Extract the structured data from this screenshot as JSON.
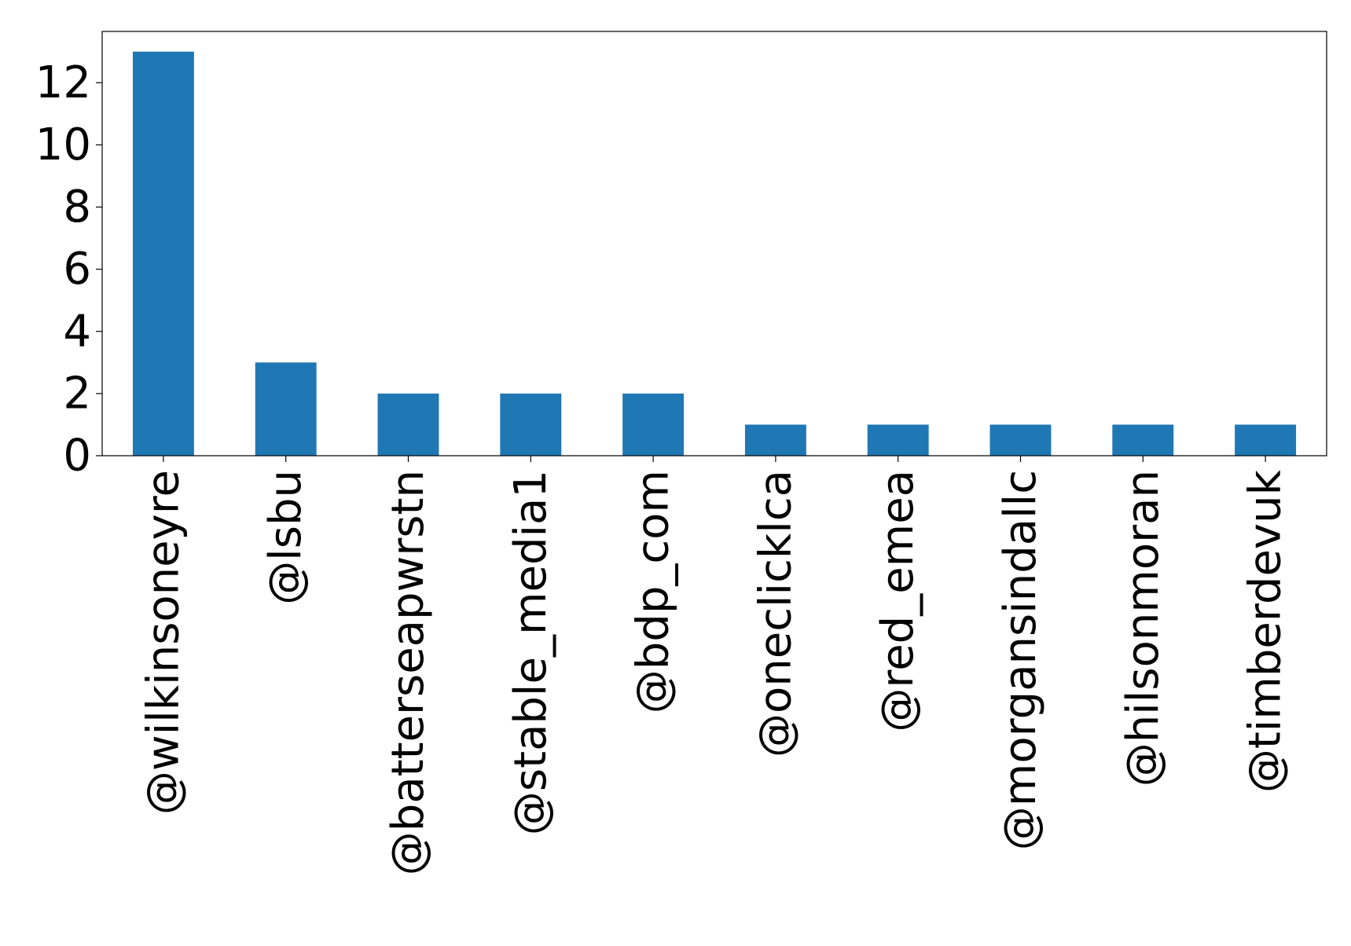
{
  "chart_data": {
    "type": "bar",
    "title": "",
    "xlabel": "",
    "ylabel": "",
    "categories": [
      "@wilkinsoneyre",
      "@lsbu",
      "@batterseapwrstn",
      "@stable_media1",
      "@bdp_com",
      "@oneclicklca",
      "@red_emea",
      "@morgansindallc",
      "@hilsonmoran",
      "@timberdevuk"
    ],
    "values": [
      13,
      3,
      2,
      2,
      2,
      1,
      1,
      1,
      1,
      1
    ],
    "ylim": [
      0,
      13.65
    ],
    "yticks": [
      0,
      2,
      4,
      6,
      8,
      10,
      12
    ],
    "grid": false,
    "legend": "none",
    "colors": {
      "bar": "#1f77b4",
      "axis": "#000000",
      "text": "#000000"
    }
  }
}
